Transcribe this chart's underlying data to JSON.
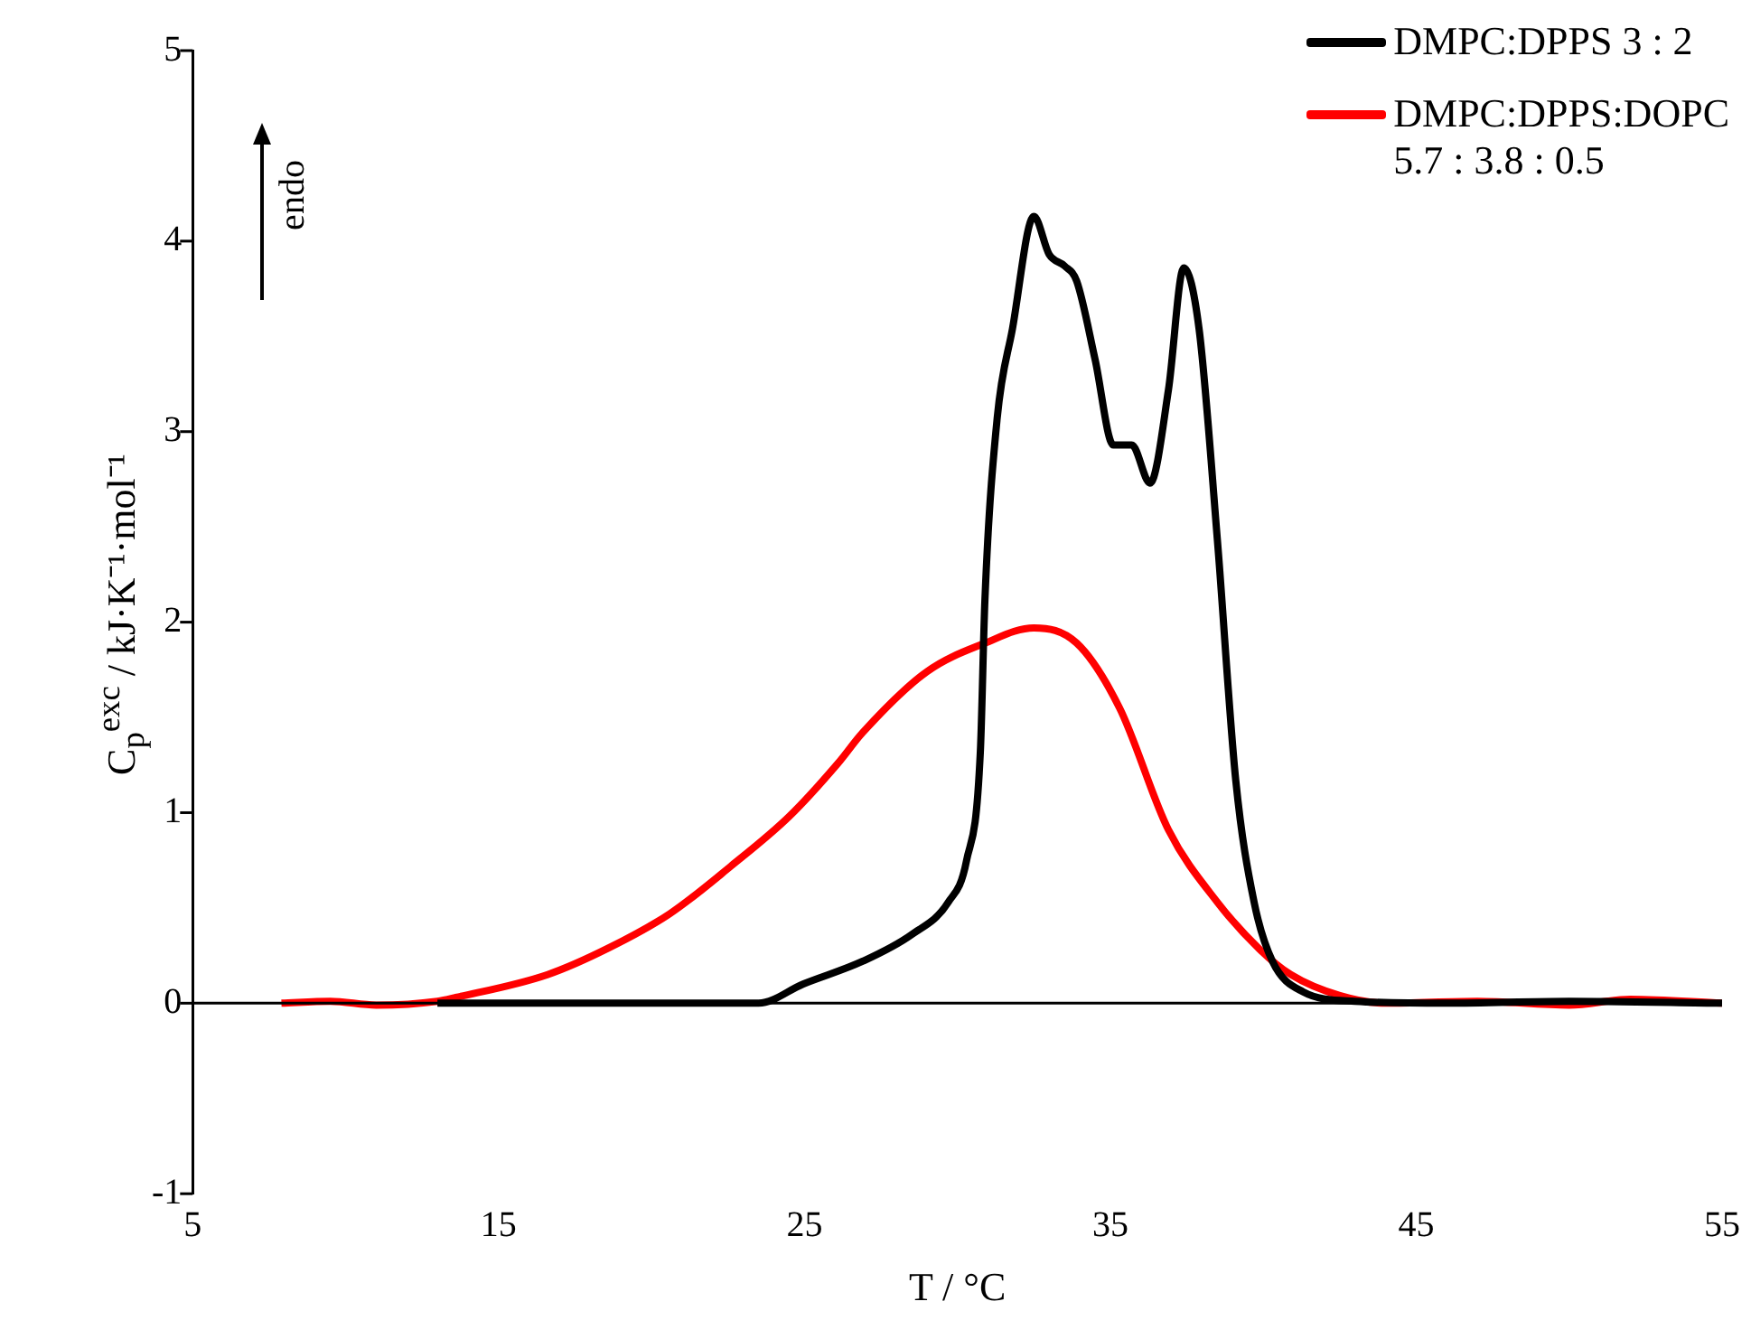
{
  "chart_data": {
    "type": "line",
    "xlabel": "T / °C",
    "ylabel": "C$_{p}$$^{exc}$ / kJ·K⁻¹·mol⁻¹",
    "xlim": [
      5,
      55
    ],
    "xticks": [
      5,
      15,
      25,
      35,
      45,
      55
    ],
    "ylim": [
      -1,
      5
    ],
    "yticks": [
      -1,
      0,
      1,
      2,
      3,
      4,
      5
    ],
    "grid": false,
    "legend": "top right",
    "marker": "none",
    "line_style": "solid",
    "annotations": [
      "endo"
    ],
    "ref_lines": [
      {
        "axis": "y",
        "value": 0,
        "color": "#000000"
      }
    ],
    "series": [
      {
        "name": "DMPC:DPPS 3 : 2",
        "color": "#000000",
        "x": [
          13,
          16,
          19,
          22,
          23.5,
          24.95,
          26.9,
          28.5,
          29.7,
          30.3,
          30.75,
          30.9,
          31.3,
          31.8,
          32.5,
          33.0,
          33.5,
          33.9,
          34.5,
          35.1,
          35.7,
          36.3,
          36.9,
          37.4,
          37.9,
          38.5,
          39.1,
          39.7,
          40.3,
          41.3,
          43,
          46,
          50,
          55
        ],
        "values": [
          0,
          0,
          0,
          0,
          0,
          0.1,
          0.22,
          0.36,
          0.53,
          0.75,
          1.32,
          2.12,
          3.07,
          3.54,
          4.13,
          3.93,
          3.87,
          3.79,
          3.38,
          2.93,
          2.93,
          2.73,
          3.22,
          3.86,
          3.54,
          2.43,
          1.17,
          0.53,
          0.22,
          0.06,
          0.01,
          0,
          0.01,
          0
        ]
      },
      {
        "name": "DMPC:DPPS:DOPC\n5.7 : 3.8 : 0.5",
        "color": "#ff0000",
        "x": [
          7.9,
          9.5,
          11,
          13,
          13.6,
          16.6,
          18.6,
          20.6,
          22.6,
          24.5,
          26.1,
          26.9,
          29.0,
          30.9,
          32.5,
          33.9,
          35.3,
          36.9,
          38.5,
          39.9,
          40.9,
          42.5,
          44,
          47,
          50,
          52,
          55
        ],
        "values": [
          0,
          0.01,
          -0.01,
          0.01,
          0.03,
          0.15,
          0.29,
          0.47,
          0.72,
          0.98,
          1.26,
          1.42,
          1.74,
          1.89,
          1.97,
          1.89,
          1.55,
          0.91,
          0.53,
          0.28,
          0.15,
          0.04,
          0,
          0.01,
          -0.01,
          0.02,
          0
        ]
      }
    ]
  }
}
